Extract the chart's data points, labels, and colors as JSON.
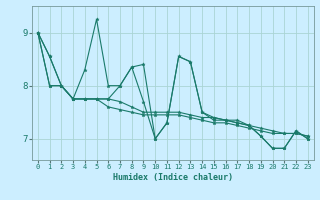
{
  "xlabel": "Humidex (Indice chaleur)",
  "bg_color": "#cceeff",
  "grid_color": "#aad4d4",
  "line_color": "#1a7a6a",
  "xlim": [
    -0.5,
    23.5
  ],
  "ylim": [
    6.6,
    9.5
  ],
  "yticks": [
    7,
    8,
    9
  ],
  "xticks": [
    0,
    1,
    2,
    3,
    4,
    5,
    6,
    7,
    8,
    9,
    10,
    11,
    12,
    13,
    14,
    15,
    16,
    17,
    18,
    19,
    20,
    21,
    22,
    23
  ],
  "series": [
    [
      9.0,
      8.55,
      8.0,
      7.75,
      8.3,
      9.25,
      8.0,
      8.0,
      8.35,
      8.4,
      7.0,
      7.3,
      8.55,
      8.45,
      7.5,
      7.4,
      7.35,
      7.3,
      7.25,
      7.05,
      6.82,
      6.82,
      7.15,
      7.0
    ],
    [
      9.0,
      8.0,
      8.0,
      7.75,
      7.75,
      7.75,
      7.75,
      7.7,
      7.6,
      7.5,
      7.5,
      7.5,
      7.5,
      7.45,
      7.4,
      7.4,
      7.35,
      7.3,
      7.25,
      7.2,
      7.15,
      7.1,
      7.1,
      7.05
    ],
    [
      9.0,
      8.0,
      8.0,
      7.75,
      7.75,
      7.75,
      7.6,
      7.55,
      7.5,
      7.45,
      7.45,
      7.45,
      7.45,
      7.4,
      7.35,
      7.3,
      7.3,
      7.25,
      7.2,
      7.15,
      7.1,
      7.1,
      7.1,
      7.05
    ],
    [
      9.0,
      8.55,
      8.0,
      7.75,
      7.75,
      7.75,
      7.75,
      8.0,
      8.35,
      7.7,
      7.0,
      7.3,
      8.55,
      8.45,
      7.5,
      7.35,
      7.35,
      7.35,
      7.25,
      7.05,
      6.82,
      6.82,
      7.15,
      7.0
    ]
  ]
}
